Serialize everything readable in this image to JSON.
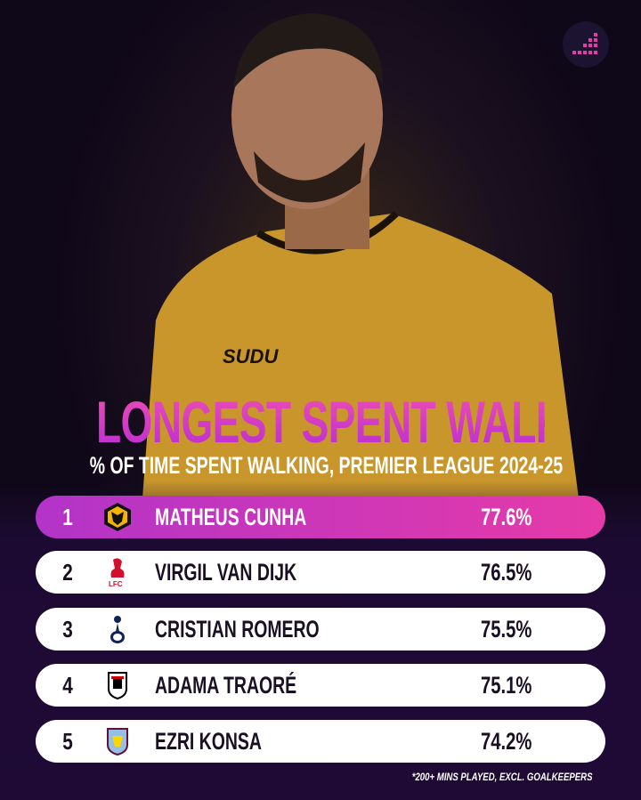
{
  "title": "LONGEST SPENT WALKING",
  "subtitle": "% OF TIME SPENT WALKING, PREMIER LEAGUE 2024-25",
  "accent_color": "#e63aa8",
  "rows": [
    {
      "rank": "1",
      "club": "wolves-crest-icon",
      "name": "MATHEUS CUNHA",
      "value": "77.6%"
    },
    {
      "rank": "2",
      "club": "liverpool-crest-icon",
      "name": "VIRGIL VAN DIJK",
      "value": "76.5%"
    },
    {
      "rank": "3",
      "club": "tottenham-crest-icon",
      "name": "CRISTIAN ROMERO",
      "value": "75.5%"
    },
    {
      "rank": "4",
      "club": "fulham-crest-icon",
      "name": "ADAMA TRAORÉ",
      "value": "75.1%"
    },
    {
      "rank": "5",
      "club": "aston-villa-crest-icon",
      "name": "EZRI KONSA",
      "value": "74.2%"
    }
  ],
  "footnote": "*200+ MINS PLAYED, EXCL. GOALKEEPERS"
}
